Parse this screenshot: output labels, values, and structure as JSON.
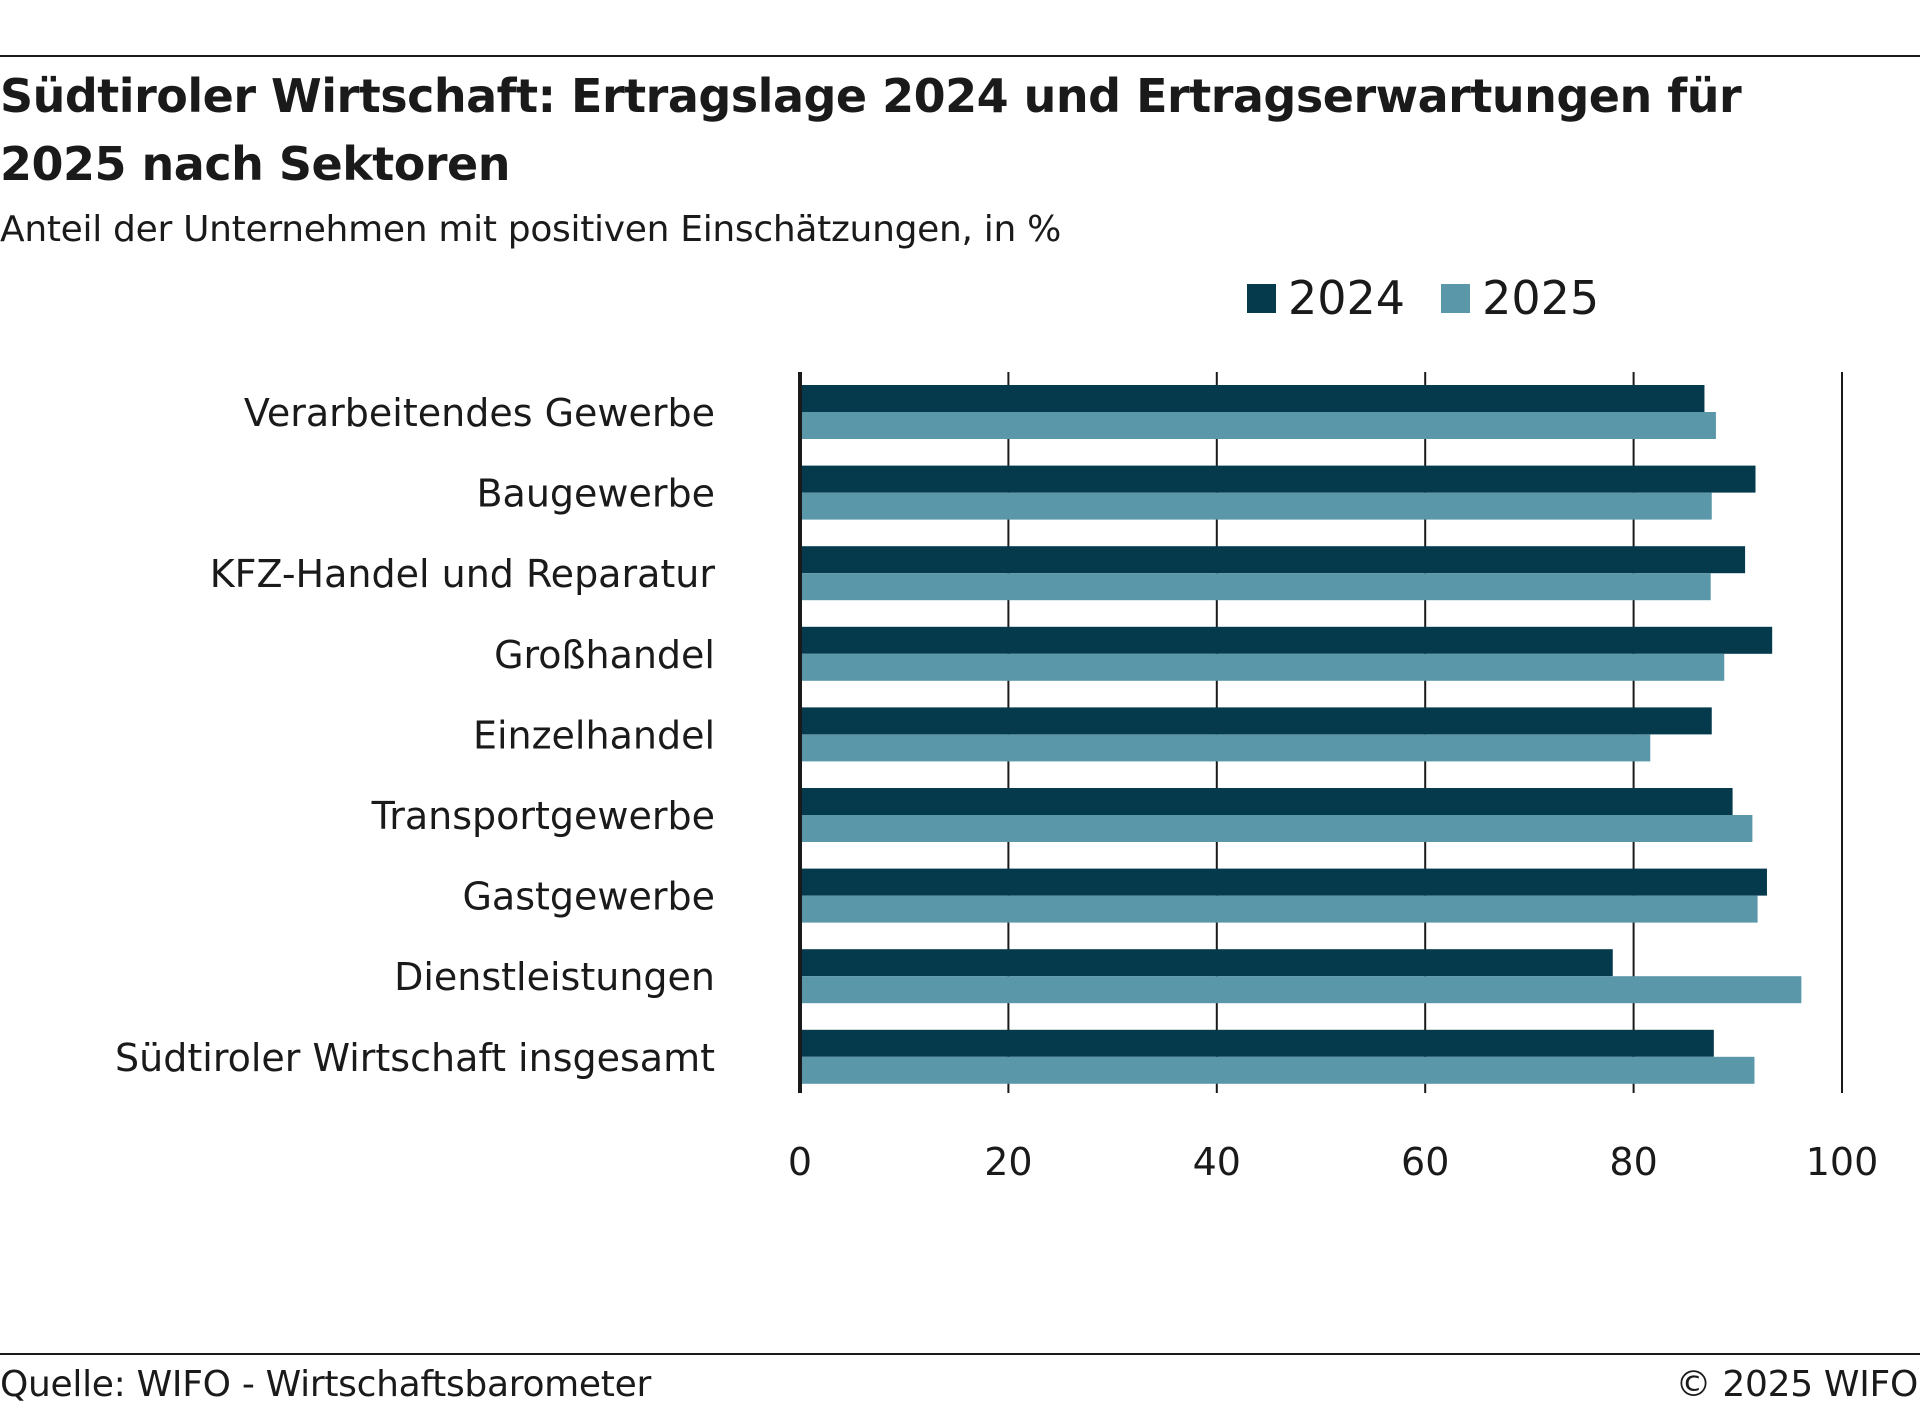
{
  "header": {
    "title": "Südtiroler Wirtschaft: Ertragslage 2024 und Ertragserwartungen für 2025 nach Sektoren",
    "subtitle": "Anteil der Unternehmen mit positiven Einschätzungen, in %"
  },
  "footer": {
    "source": "Quelle: WIFO - Wirtschaftsbarometer",
    "copyright": "© 2025 WIFO"
  },
  "chart_data": {
    "type": "bar",
    "orientation": "horizontal",
    "title": "Südtiroler Wirtschaft: Ertragslage 2024 und Ertragserwartungen für 2025 nach Sektoren",
    "subtitle": "Anteil der Unternehmen mit positiven Einschätzungen, in %",
    "xlabel": "",
    "ylabel": "",
    "xlim": [
      0,
      100
    ],
    "xticks": [
      0,
      20,
      40,
      60,
      80,
      100
    ],
    "grid": true,
    "legend_position": "top-right",
    "categories": [
      "Verarbeitendes Gewerbe",
      "Baugewerbe",
      "KFZ-Handel und Reparatur",
      "Großhandel",
      "Einzelhandel",
      "Transportgewerbe",
      "Gastgewerbe",
      "Dienstleistungen",
      "Südtiroler Wirtschaft insgesamt"
    ],
    "series": [
      {
        "name": "2024",
        "color": "#053a4d",
        "values": [
          86.8,
          91.7,
          90.7,
          93.3,
          87.5,
          89.5,
          92.8,
          78.0,
          87.7
        ]
      },
      {
        "name": "2025",
        "color": "#5a97a9",
        "values": [
          87.9,
          87.5,
          87.4,
          88.7,
          81.6,
          91.4,
          91.9,
          96.1,
          91.6
        ]
      }
    ]
  }
}
